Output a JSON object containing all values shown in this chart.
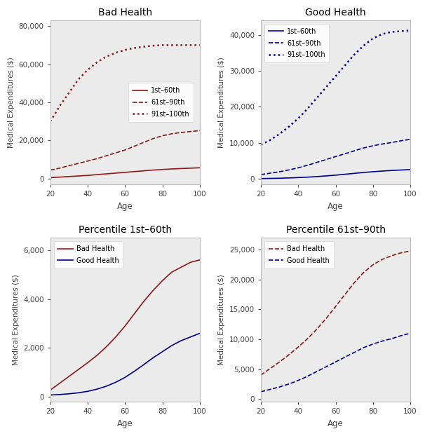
{
  "age": [
    20,
    25,
    30,
    35,
    40,
    45,
    50,
    55,
    60,
    65,
    70,
    75,
    80,
    85,
    90,
    95,
    100
  ],
  "bad_p1_60": [
    500,
    800,
    1100,
    1400,
    1700,
    2100,
    2500,
    2900,
    3300,
    3700,
    4100,
    4500,
    4800,
    5100,
    5300,
    5500,
    5700
  ],
  "bad_p61_90": [
    4500,
    5500,
    6800,
    8000,
    9200,
    10500,
    12000,
    13500,
    15000,
    17000,
    19000,
    21000,
    22500,
    23500,
    24200,
    24700,
    25200
  ],
  "bad_p91_100": [
    30000,
    38000,
    45000,
    52000,
    57000,
    61000,
    64000,
    66000,
    67500,
    68500,
    69200,
    69700,
    70000,
    70000,
    70000,
    70000,
    70000
  ],
  "good_p1_60": [
    100,
    150,
    200,
    280,
    380,
    500,
    660,
    850,
    1050,
    1300,
    1550,
    1800,
    2000,
    2200,
    2350,
    2480,
    2600
  ],
  "good_p61_90": [
    1200,
    1600,
    2000,
    2500,
    3100,
    3800,
    4600,
    5400,
    6200,
    7000,
    7800,
    8600,
    9200,
    9700,
    10100,
    10600,
    11000
  ],
  "good_p91_100": [
    9500,
    10800,
    12500,
    14500,
    16800,
    19500,
    22500,
    25500,
    28500,
    31500,
    34500,
    37000,
    39000,
    40200,
    40800,
    41000,
    41200
  ],
  "bl_bad": [
    280,
    560,
    840,
    1120,
    1400,
    1700,
    2050,
    2450,
    2900,
    3400,
    3900,
    4350,
    4750,
    5100,
    5300,
    5500,
    5600
  ],
  "bl_good": [
    80,
    100,
    130,
    170,
    230,
    320,
    440,
    600,
    800,
    1050,
    1320,
    1600,
    1850,
    2100,
    2300,
    2450,
    2600
  ],
  "bh_bad": [
    4000,
    5100,
    6200,
    7400,
    8700,
    10100,
    11700,
    13500,
    15500,
    17500,
    19500,
    21200,
    22500,
    23400,
    24000,
    24500,
    24800
  ],
  "bh_good": [
    1200,
    1600,
    2000,
    2500,
    3100,
    3800,
    4600,
    5400,
    6200,
    7000,
    7800,
    8600,
    9200,
    9700,
    10100,
    10600,
    11000
  ],
  "dark_red": "#8B1A1A",
  "dark_blue": "#00008B",
  "bg_color": "#EBEBEB",
  "title_bad": "Bad Health",
  "title_good": "Good Health",
  "title_p1": "Percentile 1st–60th",
  "title_p61": "Percentile 61st–90th",
  "ylabel": "Medical Expenditures ($)",
  "xlabel": "Age"
}
